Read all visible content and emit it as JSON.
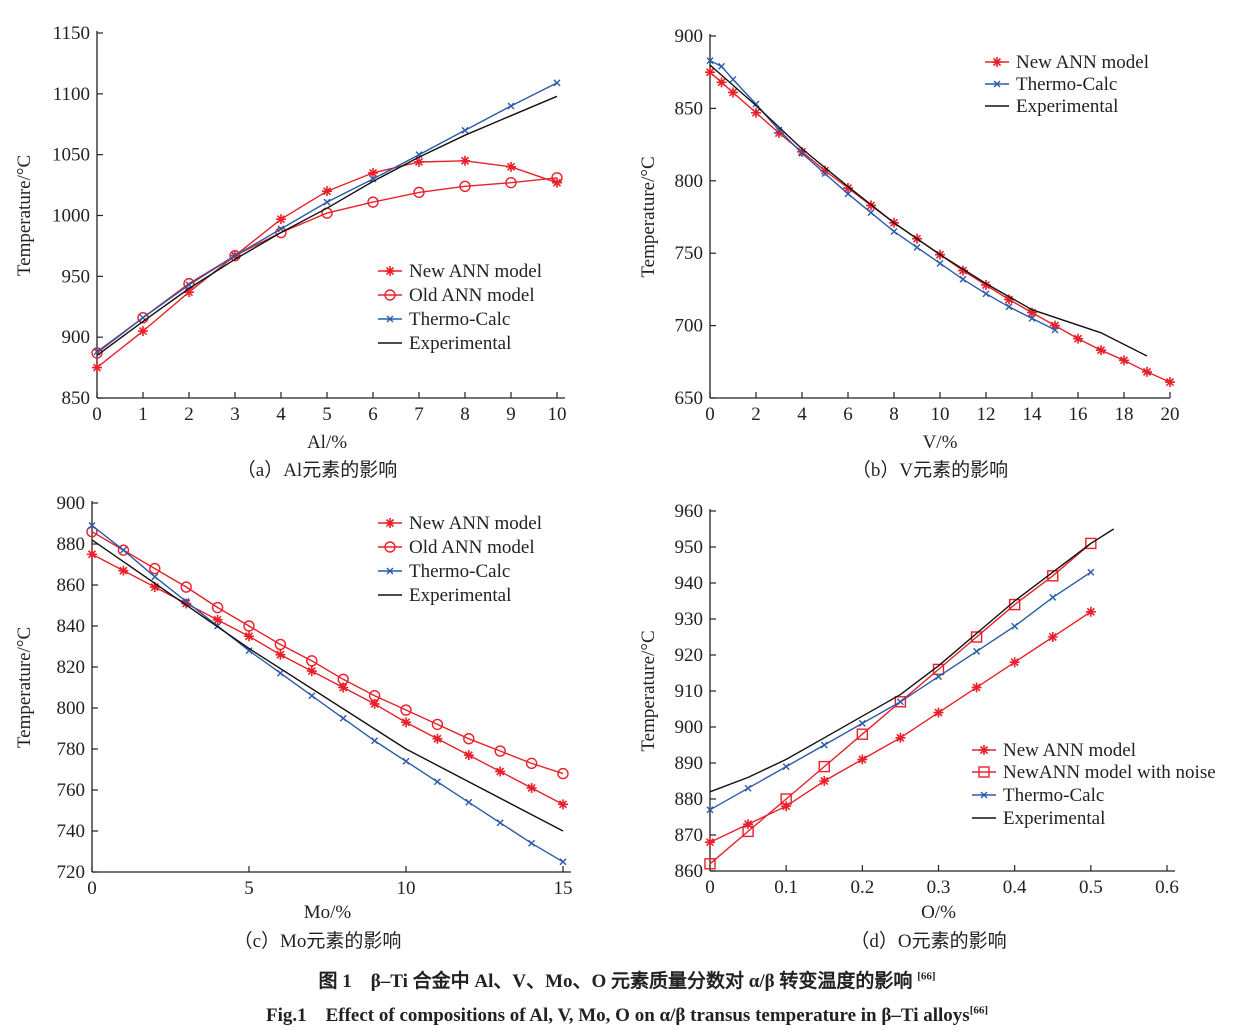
{
  "figure_caption_cn": "图 1　β–Ti 合金中 Al、V、Mo、O 元素质量分数对 α/β 转变温度的影响",
  "figure_caption_en": "Fig.1　Effect of compositions of Al, V, Mo, O on α/β transus temperature in β–Ti alloys",
  "reference": "[66]",
  "colors": {
    "red": "#e8202a",
    "blue": "#2a5aa8",
    "black": "#111111"
  },
  "chart_data": [
    {
      "type": "line",
      "subtitle": "（a）Al元素的影响",
      "xlabel": "Al/%",
      "ylabel": "Temperature/°C",
      "xlim": [
        0,
        10
      ],
      "ylim": [
        850,
        1150
      ],
      "xticks": [
        0,
        1,
        2,
        3,
        4,
        5,
        6,
        7,
        8,
        9,
        10
      ],
      "yticks": [
        850,
        900,
        950,
        1000,
        1050,
        1100,
        1150
      ],
      "grid": false,
      "legend": "right",
      "series": [
        {
          "name": "New ANN model",
          "color": "#e8202a",
          "marker": "star",
          "x": [
            0,
            1,
            2,
            3,
            4,
            5,
            6,
            7,
            8,
            9,
            10
          ],
          "y": [
            875,
            905,
            937,
            967,
            997,
            1020,
            1035,
            1044,
            1045,
            1040,
            1027
          ]
        },
        {
          "name": "Old ANN model",
          "color": "#e8202a",
          "marker": "circle",
          "x": [
            0,
            1,
            2,
            3,
            4,
            5,
            6,
            7,
            8,
            9,
            10
          ],
          "y": [
            887,
            916,
            944,
            967,
            986,
            1002,
            1011,
            1019,
            1024,
            1027,
            1031
          ]
        },
        {
          "name": "Thermo-Calc",
          "color": "#2a5aa8",
          "marker": "x",
          "x": [
            0,
            1,
            2,
            3,
            4,
            5,
            6,
            7,
            8,
            9,
            10
          ],
          "y": [
            888,
            916,
            943,
            967,
            989,
            1011,
            1030,
            1050,
            1070,
            1090,
            1109
          ]
        },
        {
          "name": "Experimental",
          "color": "#111111",
          "marker": "none",
          "x": [
            0,
            1,
            2,
            3,
            4,
            5,
            6,
            7,
            8,
            9,
            10
          ],
          "y": [
            885,
            913,
            940,
            964,
            986,
            1006,
            1028,
            1048,
            1066,
            1082,
            1098
          ]
        }
      ]
    },
    {
      "type": "line",
      "subtitle": "（b）V元素的影响",
      "xlabel": "V/%",
      "ylabel": "Temperature/°C",
      "xlim": [
        0,
        20
      ],
      "ylim": [
        650,
        900
      ],
      "xticks": [
        0,
        2,
        4,
        6,
        8,
        10,
        12,
        14,
        16,
        18,
        20
      ],
      "yticks": [
        650,
        700,
        750,
        800,
        850,
        900
      ],
      "grid": false,
      "legend": "top-right",
      "series": [
        {
          "name": "New ANN model",
          "color": "#e8202a",
          "marker": "star",
          "x": [
            0,
            0.5,
            1,
            2,
            3,
            4,
            5,
            6,
            7,
            8,
            9,
            10,
            11,
            12,
            13,
            14,
            15,
            16,
            17,
            18,
            19,
            20
          ],
          "y": [
            875,
            868,
            861,
            847,
            833,
            820,
            807,
            795,
            783,
            771,
            760,
            749,
            738,
            728,
            718,
            709,
            700,
            691,
            683,
            676,
            668,
            661
          ]
        },
        {
          "name": "Thermo-Calc",
          "color": "#2a5aa8",
          "marker": "x",
          "x": [
            0,
            0.5,
            1,
            2,
            3,
            4,
            5,
            6,
            7,
            8,
            9,
            10,
            11,
            12,
            13,
            14,
            15
          ],
          "y": [
            883,
            879,
            870,
            853,
            835,
            819,
            805,
            791,
            778,
            765,
            754,
            743,
            732,
            722,
            713,
            705,
            697
          ]
        },
        {
          "name": "Experimental",
          "color": "#111111",
          "marker": "none",
          "x": [
            0,
            2,
            4,
            6,
            8,
            10,
            12,
            14,
            17,
            19
          ],
          "y": [
            880,
            852,
            822,
            796,
            771,
            749,
            729,
            711,
            695,
            679
          ]
        }
      ]
    },
    {
      "type": "line",
      "subtitle": "（c）Mo元素的影响",
      "xlabel": "Mo/%",
      "ylabel": "Temperature/°C",
      "xlim": [
        0,
        15
      ],
      "ylim": [
        720,
        900
      ],
      "xticks": [
        0,
        5,
        10,
        15
      ],
      "yticks": [
        720,
        740,
        760,
        780,
        800,
        820,
        840,
        860,
        880,
        900
      ],
      "grid": false,
      "legend": "top-right",
      "series": [
        {
          "name": "New ANN model",
          "color": "#e8202a",
          "marker": "star",
          "x": [
            0,
            1,
            2,
            3,
            4,
            5,
            6,
            7,
            8,
            9,
            10,
            11,
            12,
            13,
            14,
            15
          ],
          "y": [
            875,
            867,
            859,
            851,
            843,
            835,
            826,
            818,
            810,
            802,
            793,
            785,
            777,
            769,
            761,
            753
          ]
        },
        {
          "name": "Old ANN model",
          "color": "#e8202a",
          "marker": "circle",
          "x": [
            0,
            1,
            2,
            3,
            4,
            5,
            6,
            7,
            8,
            9,
            10,
            11,
            12,
            13,
            14,
            15
          ],
          "y": [
            886,
            877,
            868,
            859,
            849,
            840,
            831,
            823,
            814,
            806,
            799,
            792,
            785,
            779,
            773,
            768
          ]
        },
        {
          "name": "Thermo-Calc",
          "color": "#2a5aa8",
          "marker": "x",
          "x": [
            0,
            1,
            2,
            3,
            4,
            5,
            6,
            7,
            8,
            9,
            10,
            11,
            12,
            13,
            14,
            15
          ],
          "y": [
            889,
            877,
            864,
            852,
            840,
            828,
            817,
            806,
            795,
            784,
            774,
            764,
            754,
            744,
            734,
            725
          ]
        },
        {
          "name": "Experimental",
          "color": "#111111",
          "marker": "none",
          "x": [
            0,
            5,
            10,
            15
          ],
          "y": [
            882,
            829,
            780,
            740
          ]
        }
      ]
    },
    {
      "type": "line",
      "subtitle": "（d）O元素的影响",
      "xlabel": "O/%",
      "ylabel": "Temperature/°C",
      "xlim": [
        0,
        0.6
      ],
      "ylim": [
        860,
        960
      ],
      "xticks": [
        0,
        0.1,
        0.2,
        0.3,
        0.4,
        0.5,
        0.6
      ],
      "yticks": [
        860,
        870,
        880,
        890,
        900,
        910,
        920,
        930,
        940,
        950,
        960
      ],
      "grid": false,
      "legend": "bottom-right",
      "series": [
        {
          "name": "New ANN model",
          "color": "#e8202a",
          "marker": "star",
          "x": [
            0,
            0.05,
            0.1,
            0.15,
            0.2,
            0.25,
            0.3,
            0.35,
            0.4,
            0.45,
            0.5
          ],
          "y": [
            868,
            873,
            878,
            885,
            891,
            897,
            904,
            911,
            918,
            925,
            932
          ]
        },
        {
          "name": "NewANN model with noise",
          "color": "#e8202a",
          "marker": "square",
          "x": [
            0,
            0.05,
            0.1,
            0.15,
            0.2,
            0.25,
            0.3,
            0.35,
            0.4,
            0.45,
            0.5
          ],
          "y": [
            862,
            871,
            880,
            889,
            898,
            907,
            916,
            925,
            934,
            942,
            951
          ]
        },
        {
          "name": "Thermo-Calc",
          "color": "#2a5aa8",
          "marker": "x",
          "x": [
            0,
            0.05,
            0.1,
            0.15,
            0.2,
            0.25,
            0.3,
            0.35,
            0.4,
            0.45,
            0.5
          ],
          "y": [
            877,
            883,
            889,
            895,
            901,
            907,
            914,
            921,
            928,
            936,
            943
          ]
        },
        {
          "name": "Experimental",
          "color": "#111111",
          "marker": "none",
          "x": [
            0,
            0.05,
            0.1,
            0.15,
            0.2,
            0.25,
            0.3,
            0.35,
            0.4,
            0.45,
            0.5,
            0.53
          ],
          "y": [
            882,
            886,
            891,
            897,
            903,
            909,
            917,
            926,
            935,
            943,
            951,
            955
          ]
        }
      ]
    }
  ]
}
